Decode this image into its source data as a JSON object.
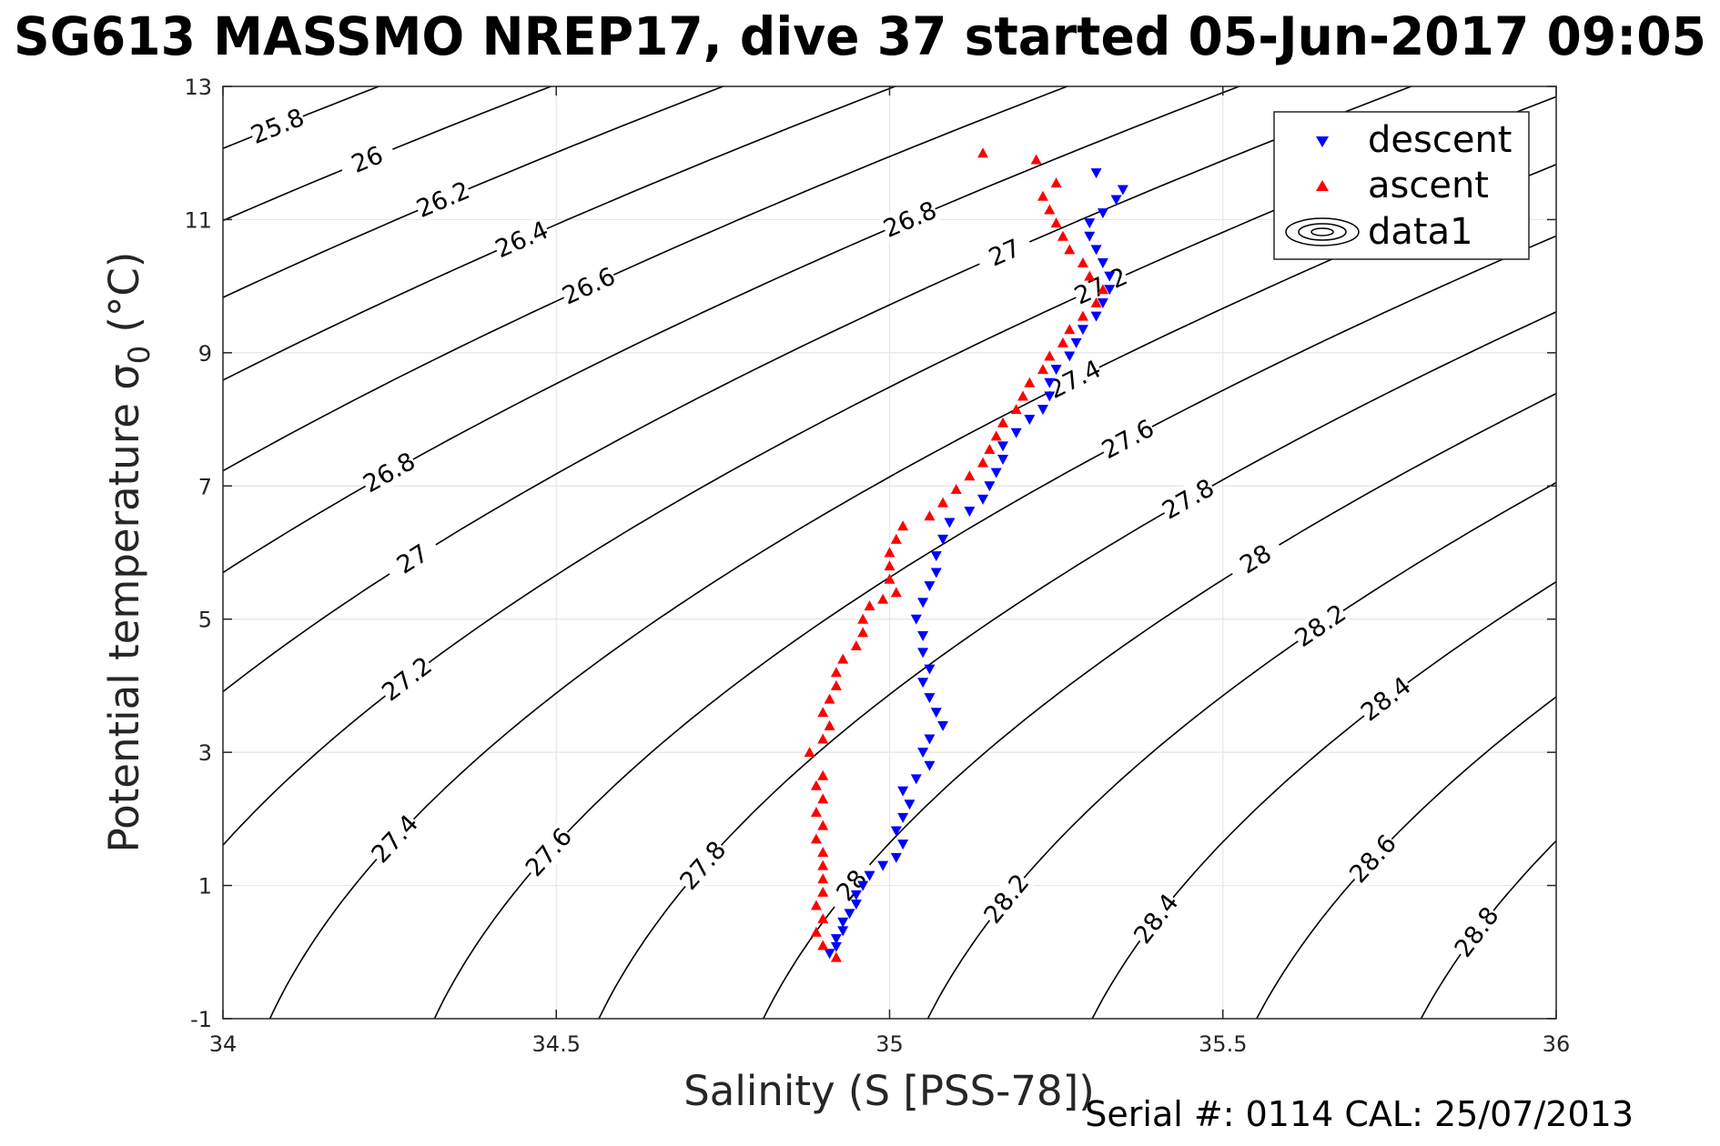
{
  "chart_data": {
    "type": "scatter",
    "title": "SG613 MASSMO NREP17, dive 37 started 05-Jun-2017 09:05",
    "xlabel": "Salinity (S [PSS-78])",
    "ylabel": "Potential temperature σ",
    "ylabel_sub": "0",
    "ylabel_unit": " (°C)",
    "xlim": [
      34,
      36
    ],
    "ylim": [
      -1,
      13
    ],
    "xticks": [
      "34",
      "34.5",
      "35",
      "35.5",
      "36"
    ],
    "yticks": [
      "-1",
      "1",
      "3",
      "5",
      "7",
      "9",
      "11",
      "13"
    ],
    "grid": true,
    "legend_position": "top-right",
    "footer": "Serial #: 0114  CAL: 25/07/2013",
    "series": [
      {
        "name": "descent",
        "marker": "triangle-down",
        "color": "#0000ff",
        "points": [
          [
            34.91,
            -0.02
          ],
          [
            34.92,
            0.08
          ],
          [
            34.92,
            0.2
          ],
          [
            34.93,
            0.32
          ],
          [
            34.93,
            0.45
          ],
          [
            34.94,
            0.58
          ],
          [
            34.95,
            0.72
          ],
          [
            34.95,
            0.86
          ],
          [
            34.96,
            1.0
          ],
          [
            34.97,
            1.15
          ],
          [
            34.99,
            1.3
          ],
          [
            35.01,
            1.42
          ],
          [
            35.02,
            1.62
          ],
          [
            35.01,
            1.82
          ],
          [
            35.02,
            2.02
          ],
          [
            35.03,
            2.22
          ],
          [
            35.02,
            2.42
          ],
          [
            35.04,
            2.6
          ],
          [
            35.06,
            2.8
          ],
          [
            35.05,
            3.0
          ],
          [
            35.06,
            3.2
          ],
          [
            35.08,
            3.4
          ],
          [
            35.07,
            3.6
          ],
          [
            35.06,
            3.82
          ],
          [
            35.05,
            4.05
          ],
          [
            35.06,
            4.25
          ],
          [
            35.05,
            4.5
          ],
          [
            35.05,
            4.75
          ],
          [
            35.04,
            5.0
          ],
          [
            35.05,
            5.25
          ],
          [
            35.06,
            5.5
          ],
          [
            35.07,
            5.7
          ],
          [
            35.07,
            5.95
          ],
          [
            35.08,
            6.2
          ],
          [
            35.09,
            6.45
          ],
          [
            35.12,
            6.62
          ],
          [
            35.14,
            6.8
          ],
          [
            35.15,
            7.0
          ],
          [
            35.16,
            7.2
          ],
          [
            35.17,
            7.4
          ],
          [
            35.17,
            7.6
          ],
          [
            35.19,
            7.8
          ],
          [
            35.21,
            8.0
          ],
          [
            35.23,
            8.15
          ],
          [
            35.24,
            8.35
          ],
          [
            35.24,
            8.55
          ],
          [
            35.25,
            8.75
          ],
          [
            35.27,
            8.95
          ],
          [
            35.28,
            9.15
          ],
          [
            35.29,
            9.35
          ],
          [
            35.31,
            9.55
          ],
          [
            35.32,
            9.75
          ],
          [
            35.33,
            9.95
          ],
          [
            35.33,
            10.15
          ],
          [
            35.32,
            10.35
          ],
          [
            35.31,
            10.55
          ],
          [
            35.3,
            10.75
          ],
          [
            35.3,
            10.95
          ],
          [
            35.32,
            11.1
          ],
          [
            35.34,
            11.3
          ],
          [
            35.35,
            11.45
          ],
          [
            35.31,
            11.7
          ]
        ]
      },
      {
        "name": "ascent",
        "marker": "triangle-up",
        "color": "#ff0000",
        "points": [
          [
            34.92,
            -0.08
          ],
          [
            34.9,
            0.1
          ],
          [
            34.89,
            0.3
          ],
          [
            34.9,
            0.5
          ],
          [
            34.89,
            0.7
          ],
          [
            34.9,
            0.9
          ],
          [
            34.9,
            1.1
          ],
          [
            34.9,
            1.3
          ],
          [
            34.9,
            1.5
          ],
          [
            34.89,
            1.7
          ],
          [
            34.9,
            1.9
          ],
          [
            34.89,
            2.1
          ],
          [
            34.9,
            2.3
          ],
          [
            34.89,
            2.5
          ],
          [
            34.9,
            2.65
          ],
          [
            34.88,
            3.0
          ],
          [
            34.9,
            3.2
          ],
          [
            34.91,
            3.4
          ],
          [
            34.9,
            3.6
          ],
          [
            34.91,
            3.8
          ],
          [
            34.92,
            4.0
          ],
          [
            34.92,
            4.2
          ],
          [
            34.93,
            4.4
          ],
          [
            34.95,
            4.6
          ],
          [
            34.96,
            4.8
          ],
          [
            34.96,
            5.0
          ],
          [
            34.97,
            5.2
          ],
          [
            34.99,
            5.3
          ],
          [
            35.01,
            5.4
          ],
          [
            35.0,
            5.6
          ],
          [
            35.0,
            5.8
          ],
          [
            35.0,
            6.0
          ],
          [
            35.01,
            6.2
          ],
          [
            35.02,
            6.4
          ],
          [
            35.06,
            6.55
          ],
          [
            35.08,
            6.75
          ],
          [
            35.1,
            6.95
          ],
          [
            35.12,
            7.15
          ],
          [
            35.14,
            7.35
          ],
          [
            35.15,
            7.55
          ],
          [
            35.16,
            7.75
          ],
          [
            35.17,
            7.95
          ],
          [
            35.19,
            8.15
          ],
          [
            35.2,
            8.35
          ],
          [
            35.21,
            8.55
          ],
          [
            35.23,
            8.75
          ],
          [
            35.24,
            8.95
          ],
          [
            35.26,
            9.15
          ],
          [
            35.27,
            9.35
          ],
          [
            35.29,
            9.55
          ],
          [
            35.31,
            9.75
          ],
          [
            35.32,
            9.95
          ],
          [
            35.3,
            10.15
          ],
          [
            35.29,
            10.35
          ],
          [
            35.27,
            10.55
          ],
          [
            35.26,
            10.75
          ],
          [
            35.25,
            10.95
          ],
          [
            35.24,
            11.15
          ],
          [
            35.23,
            11.35
          ],
          [
            35.25,
            11.55
          ],
          [
            35.22,
            11.9
          ],
          [
            35.14,
            12.0
          ]
        ]
      }
    ],
    "contours": {
      "color": "#000000",
      "levels": [
        "25.8",
        "26",
        "26.2",
        "26.4",
        "26.6",
        "26.8",
        "27",
        "27.2",
        "27.4",
        "27.6",
        "27.8",
        "28",
        "28.2",
        "28.4",
        "28.6",
        "28.8"
      ],
      "legend_name": "data1"
    }
  }
}
